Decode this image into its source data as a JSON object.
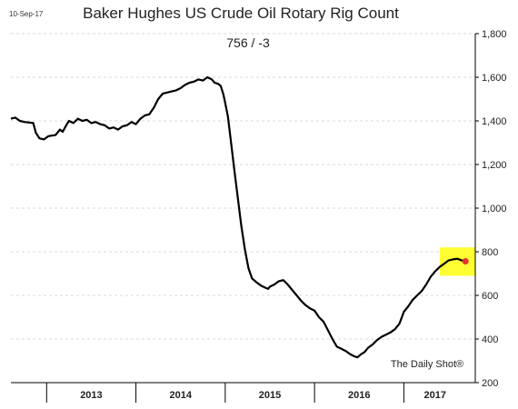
{
  "chart_data": {
    "type": "line",
    "date_label": "10-Sep-17",
    "title": "Baker Hughes US Crude Oil Rotary Rig Count",
    "subtitle": "756  /  -3",
    "source": "The Daily Shot®",
    "ylim": [
      200,
      1800
    ],
    "yticks": [
      200,
      400,
      600,
      800,
      1000,
      1200,
      1400,
      1600,
      1800
    ],
    "ytick_labels": [
      "200",
      "400",
      "600",
      "800",
      "1,000",
      "1,200",
      "1,400",
      "1,600",
      "1,800"
    ],
    "y_axis_position": "right",
    "grid": true,
    "xlim": [
      2012.6,
      2017.8
    ],
    "x_year_boundaries": [
      2013.0,
      2014.0,
      2015.0,
      2016.0,
      2017.0
    ],
    "x_labels": [
      {
        "label": "2013",
        "center": 2013.5
      },
      {
        "label": "2014",
        "center": 2014.5
      },
      {
        "label": "2015",
        "center": 2015.5
      },
      {
        "label": "2016",
        "center": 2016.5
      },
      {
        "label": "2017",
        "center": 2017.35
      }
    ],
    "highlight": {
      "x": [
        2017.4,
        2017.8
      ],
      "y": [
        690,
        820
      ],
      "color": "#ffff33"
    },
    "last_point": {
      "x": 2017.69,
      "y": 756,
      "color": "#e8312a"
    },
    "line_color": "#000000",
    "series": [
      {
        "values": [
          [
            2012.6,
            1410
          ],
          [
            2012.65,
            1415
          ],
          [
            2012.7,
            1400
          ],
          [
            2012.75,
            1395
          ],
          [
            2012.85,
            1390
          ],
          [
            2012.88,
            1345
          ],
          [
            2012.92,
            1320
          ],
          [
            2012.97,
            1315
          ],
          [
            2013.02,
            1330
          ],
          [
            2013.1,
            1335
          ],
          [
            2013.15,
            1360
          ],
          [
            2013.18,
            1350
          ],
          [
            2013.22,
            1380
          ],
          [
            2013.25,
            1400
          ],
          [
            2013.3,
            1390
          ],
          [
            2013.35,
            1410
          ],
          [
            2013.4,
            1400
          ],
          [
            2013.45,
            1405
          ],
          [
            2013.5,
            1390
          ],
          [
            2013.55,
            1395
          ],
          [
            2013.6,
            1385
          ],
          [
            2013.65,
            1380
          ],
          [
            2013.7,
            1365
          ],
          [
            2013.75,
            1370
          ],
          [
            2013.8,
            1360
          ],
          [
            2013.85,
            1375
          ],
          [
            2013.9,
            1380
          ],
          [
            2013.95,
            1395
          ],
          [
            2014.0,
            1385
          ],
          [
            2014.05,
            1410
          ],
          [
            2014.1,
            1425
          ],
          [
            2014.15,
            1430
          ],
          [
            2014.2,
            1460
          ],
          [
            2014.25,
            1500
          ],
          [
            2014.3,
            1525
          ],
          [
            2014.35,
            1530
          ],
          [
            2014.4,
            1535
          ],
          [
            2014.45,
            1540
          ],
          [
            2014.5,
            1550
          ],
          [
            2014.55,
            1565
          ],
          [
            2014.6,
            1575
          ],
          [
            2014.65,
            1580
          ],
          [
            2014.7,
            1590
          ],
          [
            2014.75,
            1585
          ],
          [
            2014.8,
            1600
          ],
          [
            2014.85,
            1590
          ],
          [
            2014.88,
            1575
          ],
          [
            2014.92,
            1570
          ],
          [
            2014.95,
            1560
          ],
          [
            2014.98,
            1520
          ],
          [
            2015.0,
            1482
          ],
          [
            2015.03,
            1420
          ],
          [
            2015.06,
            1320
          ],
          [
            2015.1,
            1180
          ],
          [
            2015.14,
            1050
          ],
          [
            2015.18,
            920
          ],
          [
            2015.22,
            810
          ],
          [
            2015.26,
            725
          ],
          [
            2015.3,
            678
          ],
          [
            2015.35,
            660
          ],
          [
            2015.4,
            645
          ],
          [
            2015.45,
            635
          ],
          [
            2015.48,
            630
          ],
          [
            2015.5,
            640
          ],
          [
            2015.55,
            650
          ],
          [
            2015.6,
            665
          ],
          [
            2015.65,
            670
          ],
          [
            2015.7,
            650
          ],
          [
            2015.75,
            625
          ],
          [
            2015.8,
            600
          ],
          [
            2015.85,
            575
          ],
          [
            2015.9,
            555
          ],
          [
            2015.95,
            540
          ],
          [
            2016.0,
            530
          ],
          [
            2016.05,
            500
          ],
          [
            2016.1,
            480
          ],
          [
            2016.15,
            440
          ],
          [
            2016.2,
            400
          ],
          [
            2016.25,
            365
          ],
          [
            2016.3,
            355
          ],
          [
            2016.35,
            345
          ],
          [
            2016.4,
            330
          ],
          [
            2016.45,
            320
          ],
          [
            2016.48,
            316
          ],
          [
            2016.52,
            330
          ],
          [
            2016.56,
            340
          ],
          [
            2016.6,
            360
          ],
          [
            2016.65,
            375
          ],
          [
            2016.7,
            395
          ],
          [
            2016.75,
            410
          ],
          [
            2016.8,
            420
          ],
          [
            2016.85,
            430
          ],
          [
            2016.9,
            445
          ],
          [
            2016.95,
            470
          ],
          [
            2017.0,
            525
          ],
          [
            2017.05,
            550
          ],
          [
            2017.1,
            580
          ],
          [
            2017.15,
            600
          ],
          [
            2017.2,
            620
          ],
          [
            2017.25,
            650
          ],
          [
            2017.3,
            685
          ],
          [
            2017.35,
            710
          ],
          [
            2017.4,
            730
          ],
          [
            2017.45,
            745
          ],
          [
            2017.5,
            760
          ],
          [
            2017.55,
            765
          ],
          [
            2017.6,
            768
          ],
          [
            2017.65,
            760
          ],
          [
            2017.69,
            756
          ]
        ]
      }
    ]
  }
}
